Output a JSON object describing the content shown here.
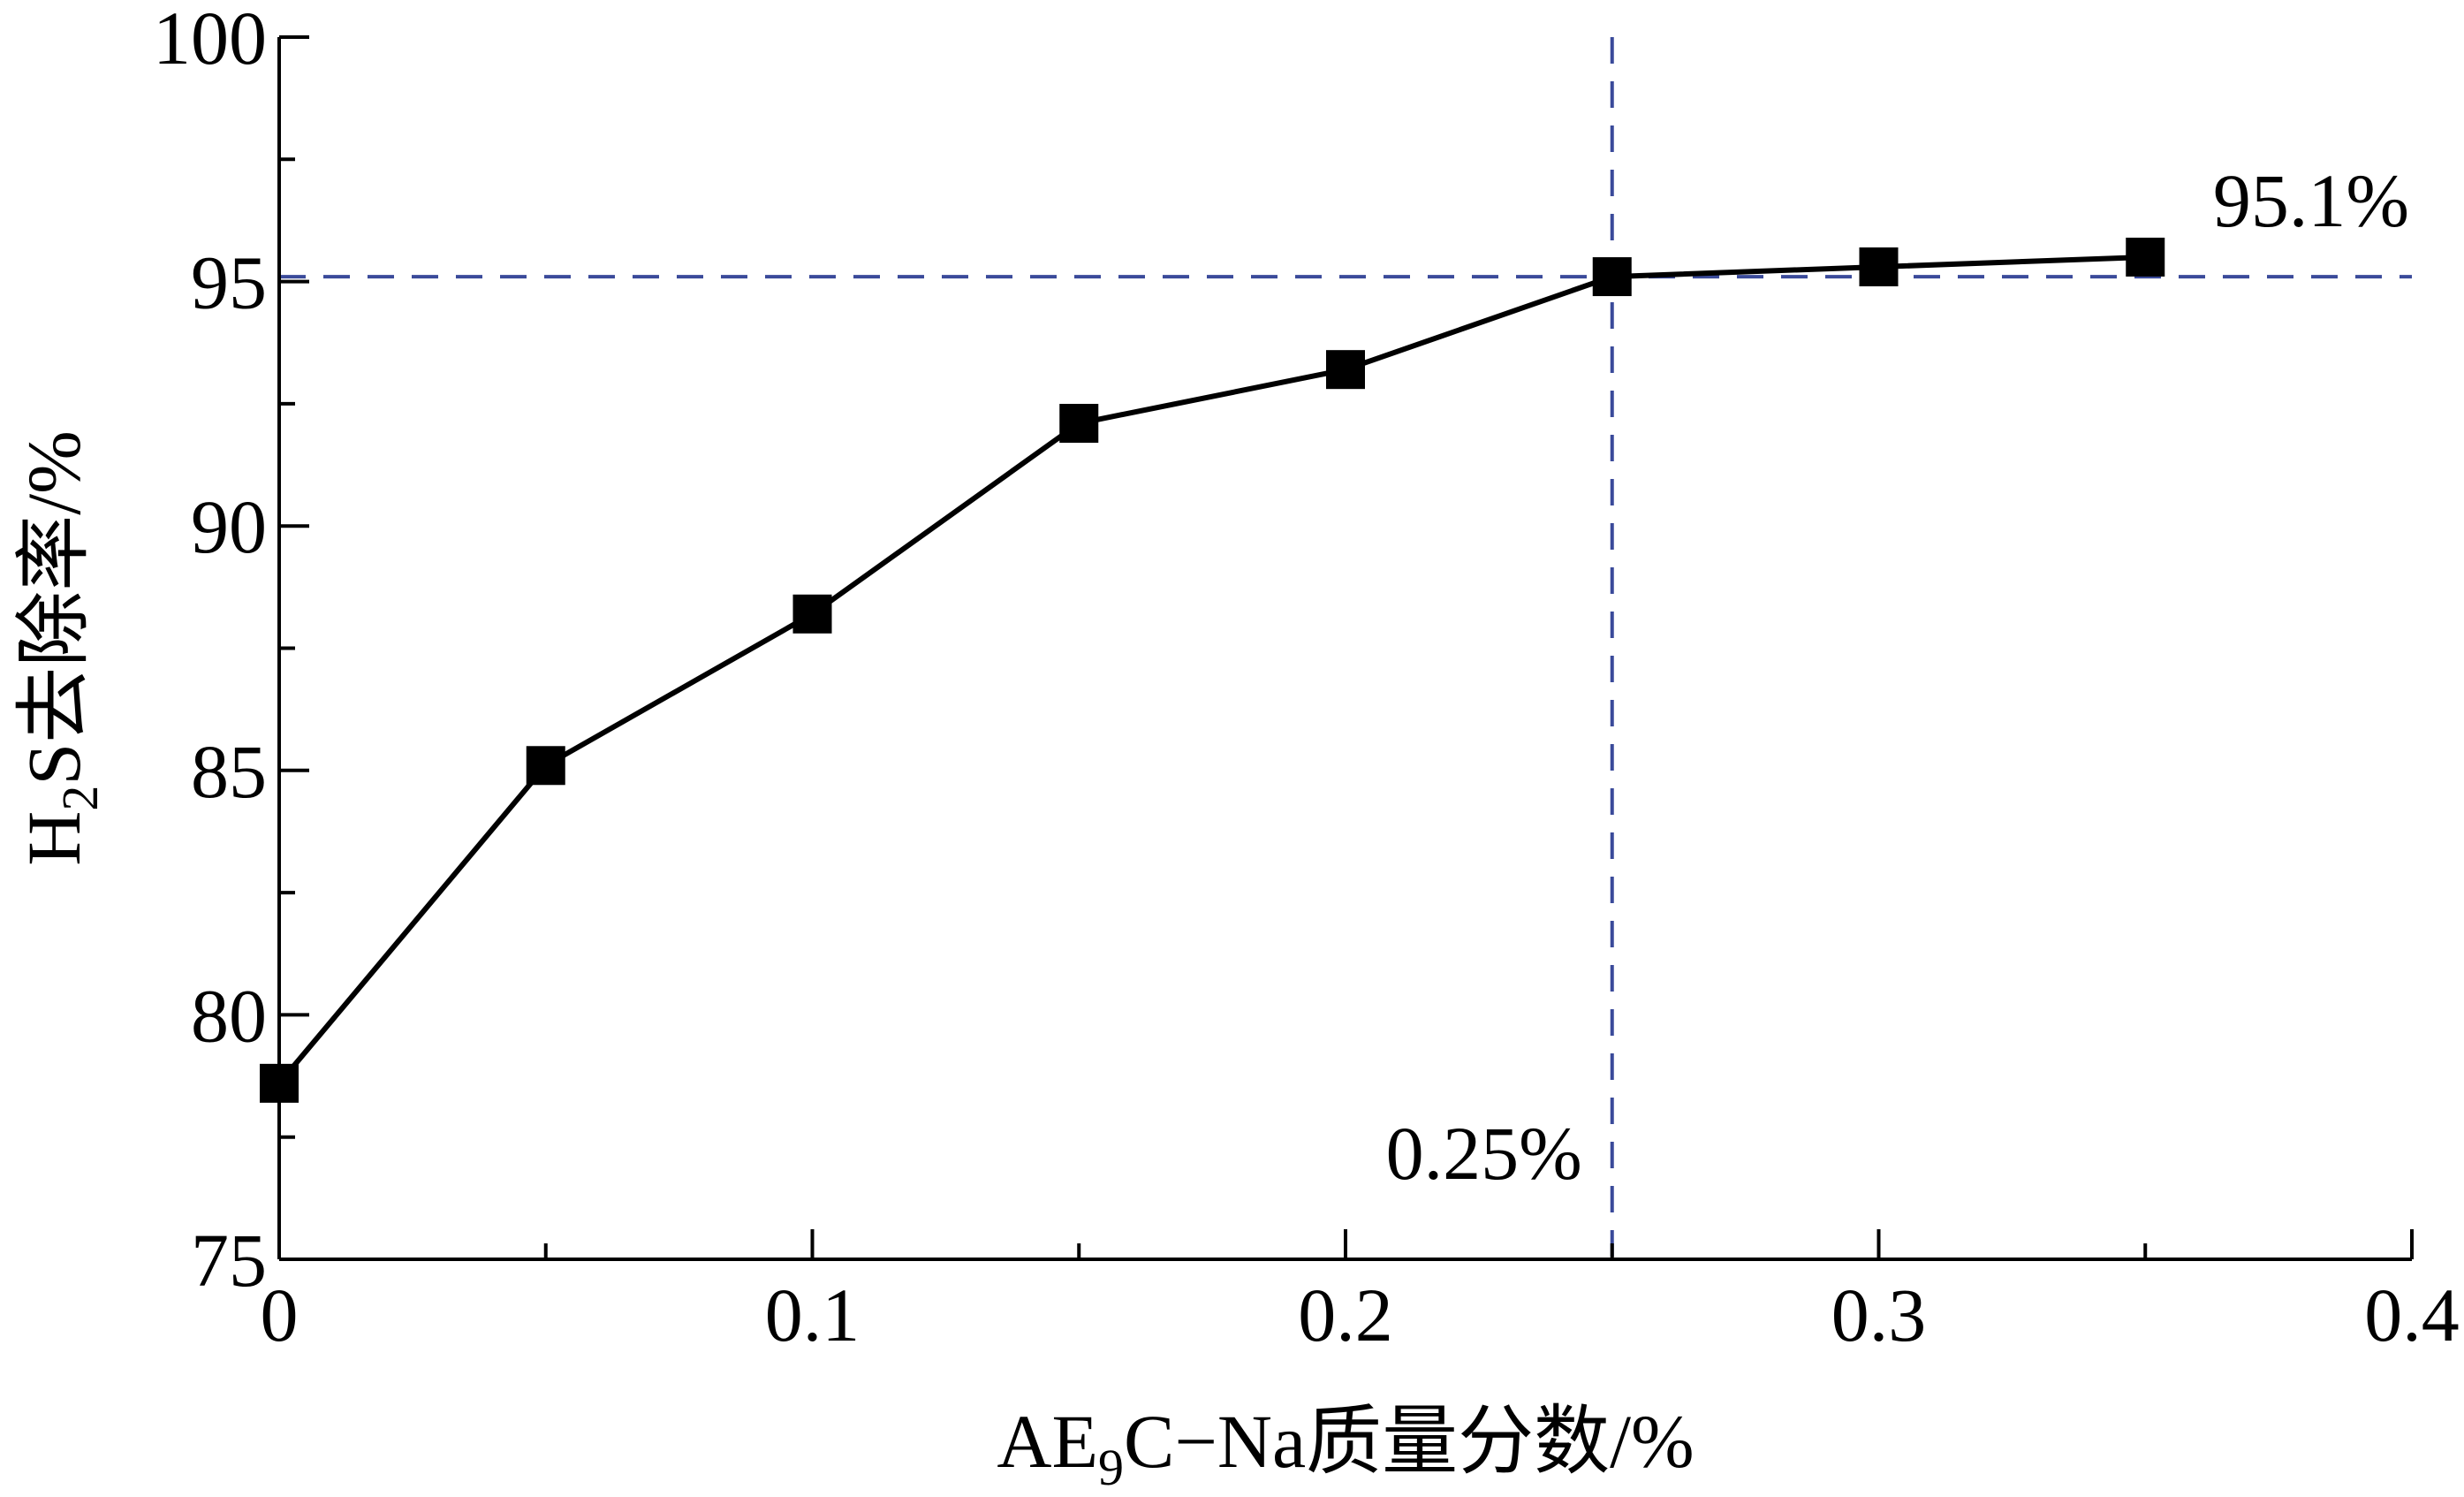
{
  "chart_data": {
    "type": "line",
    "title": "",
    "xlabel": {
      "prefix": "AE",
      "sub": "9",
      "suffix": "C−Na质量分数/%"
    },
    "ylabel": {
      "prefix": "H",
      "sub": "2",
      "suffix": "S去除率/%"
    },
    "xlim": [
      0,
      0.4
    ],
    "ylim": [
      75,
      100
    ],
    "x_ticks": [
      "0",
      "0.1",
      "0.2",
      "0.3",
      "0.4"
    ],
    "y_ticks": [
      "75",
      "80",
      "85",
      "90",
      "95",
      "100"
    ],
    "grid": false,
    "series": [
      {
        "color": "#000000",
        "marker": "square",
        "x": [
          0,
          0.05,
          0.1,
          0.15,
          0.2,
          0.25,
          0.3,
          0.35
        ],
        "y": [
          78.6,
          85.1,
          88.2,
          92.1,
          93.2,
          95.1,
          95.3,
          95.5
        ]
      }
    ],
    "reference_lines": {
      "color": "#3a4a9a",
      "style": "dashed",
      "horizontal_y": 95.1,
      "vertical_x": 0.25
    },
    "annotations": {
      "h_label": "95.1%",
      "v_label": "0.25%"
    }
  }
}
